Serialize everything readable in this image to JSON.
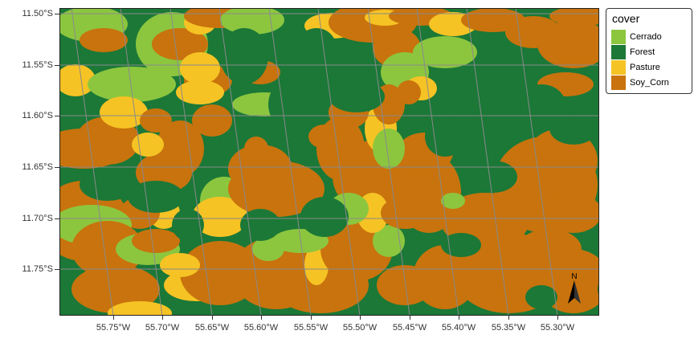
{
  "map": {
    "legend_title": "cover",
    "classes": [
      {
        "label": "Cerrado",
        "color": "#8cc63f"
      },
      {
        "label": "Forest",
        "color": "#1b7837"
      },
      {
        "label": "Pasture",
        "color": "#f6c324"
      },
      {
        "label": "Soy_Corn",
        "color": "#c8730d"
      }
    ],
    "latitude_labels": [
      "11.50°S",
      "11.55°S",
      "11.60°S",
      "11.65°S",
      "11.70°S",
      "11.75°S"
    ],
    "longitude_labels": [
      "55.75°W",
      "55.70°W",
      "55.65°W",
      "55.60°W",
      "55.55°W",
      "55.50°W",
      "55.45°W",
      "55.40°W",
      "55.35°W",
      "55.30°W"
    ],
    "north_arrow_label": "N",
    "graticule": true,
    "legend_position": "right"
  }
}
